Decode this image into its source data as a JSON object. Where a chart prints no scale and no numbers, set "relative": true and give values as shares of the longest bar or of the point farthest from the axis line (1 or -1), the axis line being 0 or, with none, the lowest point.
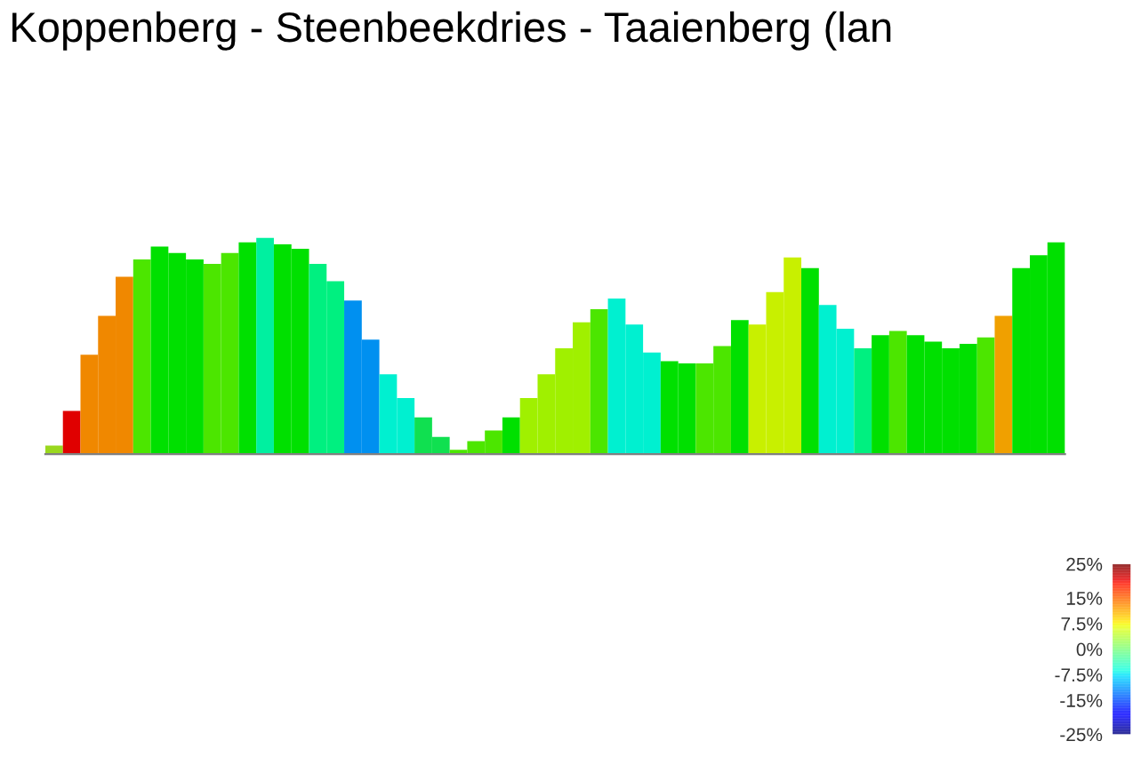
{
  "chart_data": {
    "type": "bar",
    "title": "Koppenberg - Steenbeekdries - Taaienberg (lan",
    "relative": true,
    "categories": [
      null,
      null,
      null,
      null,
      null,
      null,
      null,
      null,
      null,
      null,
      null,
      null,
      null,
      null,
      null,
      null,
      null,
      null,
      null,
      null,
      null,
      null,
      null,
      null,
      null,
      null,
      null,
      null,
      null,
      null,
      null,
      null,
      null,
      null,
      null,
      null,
      null,
      null,
      null,
      null,
      null,
      null,
      null,
      null,
      null,
      null,
      null,
      null,
      null,
      null,
      null,
      null,
      null,
      null,
      null,
      null,
      null,
      null
    ],
    "values": [
      0.04,
      0.2,
      0.46,
      0.64,
      0.82,
      0.9,
      0.96,
      0.93,
      0.9,
      0.88,
      0.93,
      0.98,
      1.0,
      0.97,
      0.95,
      0.88,
      0.8,
      0.71,
      0.53,
      0.37,
      0.26,
      0.17,
      0.08,
      0.02,
      0.06,
      0.11,
      0.17,
      0.26,
      0.37,
      0.49,
      0.61,
      0.67,
      0.72,
      0.6,
      0.47,
      0.43,
      0.42,
      0.42,
      0.5,
      0.62,
      0.6,
      0.75,
      0.91,
      0.86,
      0.69,
      0.58,
      0.49,
      0.55,
      0.57,
      0.55,
      0.52,
      0.49,
      0.51,
      0.54,
      0.64,
      0.86,
      0.92,
      0.98
    ],
    "colors": [
      "#9ad81e",
      "#e00000",
      "#f08800",
      "#f08800",
      "#f08800",
      "#4ce600",
      "#00e000",
      "#00e000",
      "#00e000",
      "#4ce600",
      "#4ce600",
      "#00e000",
      "#00f0a0",
      "#00e000",
      "#00e000",
      "#00f080",
      "#00f080",
      "#0090f0",
      "#0090f0",
      "#00f0d0",
      "#00f0d0",
      "#10e050",
      "#10e050",
      "#4ce600",
      "#4ce600",
      "#4ce600",
      "#00e000",
      "#a0f000",
      "#a0f000",
      "#a0f000",
      "#a0f000",
      "#4ce600",
      "#00f0d0",
      "#00f0d0",
      "#00f0d0",
      "#00e000",
      "#00e000",
      "#4ce600",
      "#4ce600",
      "#00e000",
      "#c8f000",
      "#c8f000",
      "#c8f000",
      "#00e000",
      "#00f0d0",
      "#00f0d0",
      "#00f080",
      "#00e000",
      "#4ce600",
      "#00e000",
      "#00e000",
      "#00e000",
      "#00e000",
      "#4ce600",
      "#f0a000",
      "#00e000",
      "#00e000",
      "#00e000"
    ],
    "clim": [
      -25,
      25
    ],
    "cticks": [
      {
        "value": 25,
        "label": "25%"
      },
      {
        "value": 15,
        "label": "15%"
      },
      {
        "value": 7.5,
        "label": "7.5%"
      },
      {
        "value": 0,
        "label": "0%"
      },
      {
        "value": -7.5,
        "label": "-7.5%"
      },
      {
        "value": -15,
        "label": "-15%"
      },
      {
        "value": -25,
        "label": "-25%"
      }
    ]
  }
}
